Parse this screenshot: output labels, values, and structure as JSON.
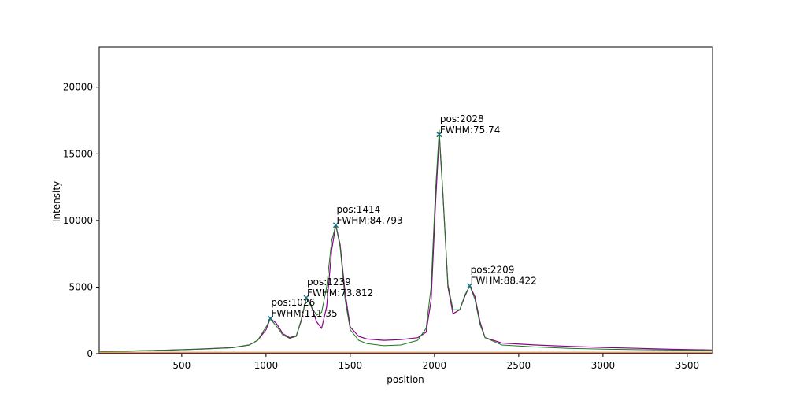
{
  "chart_data": {
    "type": "line",
    "title": "",
    "xlabel": "position",
    "ylabel": "Intensity",
    "xlim": [
      10,
      3650
    ],
    "ylim": [
      0,
      23000
    ],
    "x_ticks": [
      500,
      1000,
      1500,
      2000,
      2500,
      3000,
      3500
    ],
    "y_ticks": [
      0,
      5000,
      10000,
      15000,
      20000
    ],
    "grid": false,
    "legend": "none",
    "colors": {
      "data_line": "#8b008b",
      "fit_line": "#1a7a1a",
      "baseline": "#b22222",
      "baseline_secondary": "#d2a050",
      "marker": "#1f6f8b"
    },
    "series": [
      {
        "values": [
          [
            10,
            150
          ],
          [
            200,
            200
          ],
          [
            400,
            260
          ],
          [
            600,
            340
          ],
          [
            800,
            450
          ],
          [
            900,
            650
          ],
          [
            950,
            1000
          ],
          [
            1000,
            1800
          ],
          [
            1026,
            2650
          ],
          [
            1060,
            2300
          ],
          [
            1100,
            1500
          ],
          [
            1140,
            1200
          ],
          [
            1180,
            1350
          ],
          [
            1210,
            2500
          ],
          [
            1239,
            4200
          ],
          [
            1265,
            3700
          ],
          [
            1300,
            2400
          ],
          [
            1330,
            1900
          ],
          [
            1360,
            3500
          ],
          [
            1390,
            7800
          ],
          [
            1414,
            9650
          ],
          [
            1440,
            8200
          ],
          [
            1470,
            4500
          ],
          [
            1500,
            2000
          ],
          [
            1550,
            1300
          ],
          [
            1600,
            1100
          ],
          [
            1700,
            1000
          ],
          [
            1800,
            1050
          ],
          [
            1900,
            1200
          ],
          [
            1950,
            1600
          ],
          [
            1980,
            4000
          ],
          [
            2005,
            11000
          ],
          [
            2028,
            16450
          ],
          [
            2050,
            12000
          ],
          [
            2080,
            5000
          ],
          [
            2110,
            3000
          ],
          [
            2150,
            3300
          ],
          [
            2180,
            4300
          ],
          [
            2209,
            5100
          ],
          [
            2240,
            4300
          ],
          [
            2270,
            2400
          ],
          [
            2300,
            1200
          ],
          [
            2400,
            800
          ],
          [
            2600,
            650
          ],
          [
            2800,
            550
          ],
          [
            3000,
            470
          ],
          [
            3200,
            400
          ],
          [
            3400,
            330
          ],
          [
            3650,
            280
          ]
        ]
      },
      {
        "values": [
          [
            10,
            150
          ],
          [
            200,
            200
          ],
          [
            400,
            260
          ],
          [
            600,
            330
          ],
          [
            800,
            450
          ],
          [
            900,
            650
          ],
          [
            950,
            1000
          ],
          [
            1000,
            2000
          ],
          [
            1026,
            2600
          ],
          [
            1060,
            2100
          ],
          [
            1100,
            1400
          ],
          [
            1140,
            1150
          ],
          [
            1180,
            1300
          ],
          [
            1210,
            2600
          ],
          [
            1239,
            4200
          ],
          [
            1265,
            3600
          ],
          [
            1300,
            2900
          ],
          [
            1330,
            3100
          ],
          [
            1360,
            5000
          ],
          [
            1390,
            8500
          ],
          [
            1414,
            9650
          ],
          [
            1440,
            8000
          ],
          [
            1470,
            4000
          ],
          [
            1500,
            1800
          ],
          [
            1550,
            1000
          ],
          [
            1600,
            750
          ],
          [
            1700,
            600
          ],
          [
            1800,
            650
          ],
          [
            1900,
            1000
          ],
          [
            1950,
            1900
          ],
          [
            1980,
            5000
          ],
          [
            2005,
            12000
          ],
          [
            2028,
            16800
          ],
          [
            2050,
            12000
          ],
          [
            2080,
            5200
          ],
          [
            2110,
            3300
          ],
          [
            2150,
            3300
          ],
          [
            2180,
            4400
          ],
          [
            2209,
            5100
          ],
          [
            2240,
            4100
          ],
          [
            2270,
            2200
          ],
          [
            2300,
            1200
          ],
          [
            2400,
            650
          ],
          [
            2600,
            500
          ],
          [
            2800,
            400
          ],
          [
            3000,
            340
          ],
          [
            3200,
            300
          ],
          [
            3400,
            270
          ],
          [
            3650,
            240
          ]
        ]
      },
      {
        "values": [
          [
            10,
            40
          ],
          [
            3650,
            40
          ]
        ]
      },
      {
        "values": [
          [
            10,
            110
          ],
          [
            3650,
            110
          ]
        ]
      }
    ],
    "peaks": [
      {
        "x": 1026,
        "y": 2650,
        "pos_label": "pos:1026",
        "fwhm_label": "FWHM:111.35"
      },
      {
        "x": 1239,
        "y": 4200,
        "pos_label": "pos:1239",
        "fwhm_label": "FWHM:73.812"
      },
      {
        "x": 1414,
        "y": 9650,
        "pos_label": "pos:1414",
        "fwhm_label": "FWHM:84.793"
      },
      {
        "x": 2028,
        "y": 16450,
        "pos_label": "pos:2028",
        "fwhm_label": "FWHM:75.74"
      },
      {
        "x": 2209,
        "y": 5100,
        "pos_label": "pos:2209",
        "fwhm_label": "FWHM:88.422"
      }
    ]
  }
}
